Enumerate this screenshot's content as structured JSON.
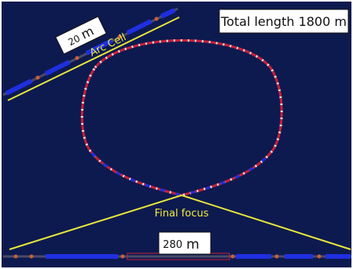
{
  "title": "Total length 1800 m",
  "labels": {
    "arc_scale_value": "20",
    "arc_scale_unit": "m",
    "arc_cell": "Arc Cell",
    "final_focus": "Final focus",
    "bottom_scale_value": "280",
    "bottom_scale_unit": "m"
  },
  "colors": {
    "background": "#0d1a4f",
    "magnet_blue": "#1f2fe0",
    "ring_red": "#c8203a",
    "ring_white": "#e6e6ee",
    "guide_yellow": "#e8e63a",
    "label_yellow": "#f2ee3c"
  }
}
